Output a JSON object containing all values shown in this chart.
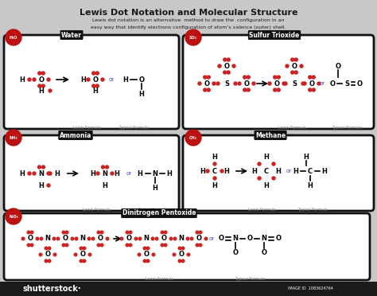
{
  "title": "Lewis Dot Notation and Molecular Structure",
  "subtitle1": "Lewis dot notation is an alternative  method to draw the  configuration in an",
  "subtitle2": "easy way that identify electrons configuration of atom’s valence (outer) shell.",
  "bg_color": "#c8c8c8",
  "box_bg": "white",
  "title_color": "#1a1a1a",
  "red": "#cc2222",
  "blue_or": "#4444cc",
  "footer_bg": "#1a1a1a",
  "image_id": "IMAGE ID  1083624764"
}
